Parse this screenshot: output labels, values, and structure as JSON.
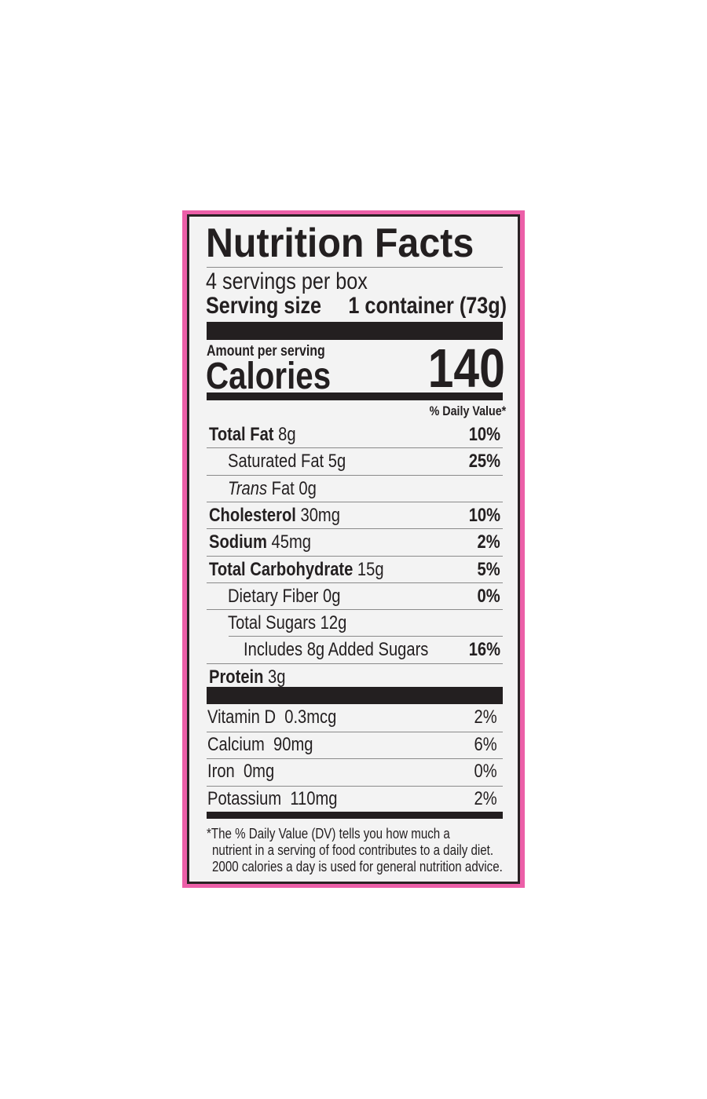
{
  "title": "Nutrition Facts",
  "servings_per_container": "4 servings per box",
  "serving_size_label": "Serving size",
  "serving_size_value": "1 container (73g)",
  "amount_per_serving": "Amount per serving",
  "calories_label": "Calories",
  "calories_value": "140",
  "daily_value_header": "% Daily Value*",
  "nutrients": [
    {
      "name": "Total Fat",
      "amount": "8g",
      "dv": "10%",
      "bold": true,
      "indent": 0
    },
    {
      "name": "Saturated Fat",
      "amount": "5g",
      "dv": "25%",
      "bold": false,
      "indent": 1
    },
    {
      "name": "Trans",
      "name_suffix": "Fat",
      "amount": "0g",
      "dv": "",
      "bold": false,
      "indent": 1,
      "italic": true
    },
    {
      "name": "Cholesterol",
      "amount": "30mg",
      "dv": "10%",
      "bold": true,
      "indent": 0
    },
    {
      "name": "Sodium",
      "amount": "45mg",
      "dv": "2%",
      "bold": true,
      "indent": 0
    },
    {
      "name": "Total Carbohydrate",
      "amount": "15g",
      "dv": "5%",
      "bold": true,
      "indent": 0
    },
    {
      "name": "Dietary Fiber",
      "amount": "0g",
      "dv": "0%",
      "bold": false,
      "indent": 1
    },
    {
      "name": "Total Sugars",
      "amount": "12g",
      "dv": "",
      "bold": false,
      "indent": 1
    },
    {
      "name": "Includes 8g Added Sugars",
      "amount": "",
      "dv": "16%",
      "bold": false,
      "indent": 2
    },
    {
      "name": "Protein",
      "amount": "3g",
      "dv": "",
      "bold": true,
      "indent": 0
    }
  ],
  "vitamins": [
    {
      "name": "Vitamin D",
      "amount": "0.3mcg",
      "dv": "2%"
    },
    {
      "name": "Calcium",
      "amount": "90mg",
      "dv": "6%"
    },
    {
      "name": "Iron",
      "amount": "0mg",
      "dv": "0%"
    },
    {
      "name": "Potassium",
      "amount": "110mg",
      "dv": "2%"
    }
  ],
  "footnote": [
    "*The % Daily Value (DV) tells you how much a",
    "nutrient in a serving of food contributes to a daily diet.",
    "2000 calories a day is used for general nutrition advice."
  ],
  "colors": {
    "border": "#ec5fa8",
    "ink": "#231f20",
    "background": "#f3f3f3"
  }
}
